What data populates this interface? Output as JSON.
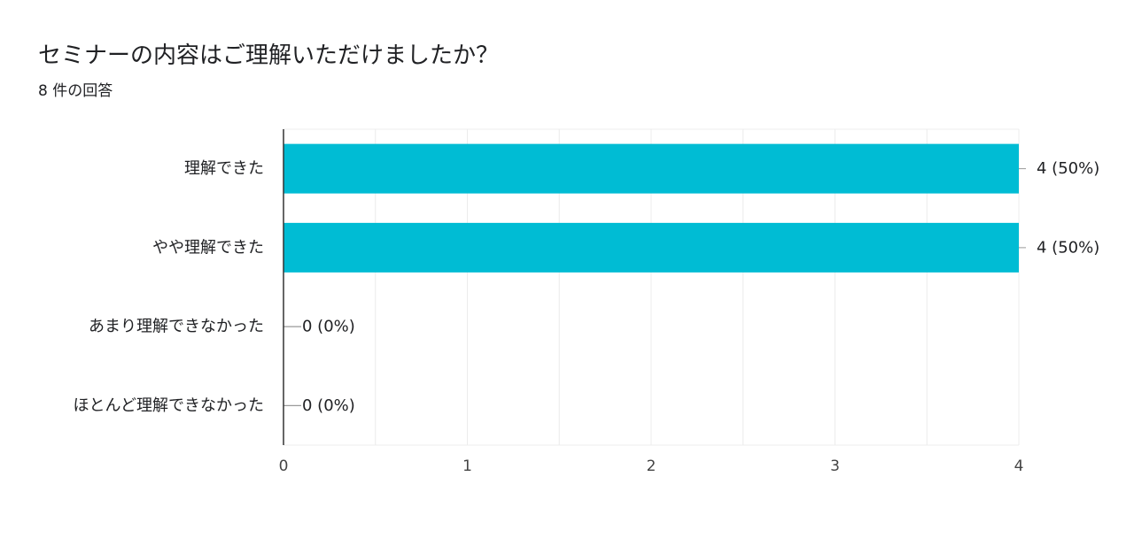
{
  "header": {
    "title": "セミナーの内容はご理解いただけましたか？",
    "subtitle": "8 件の回答"
  },
  "colors": {
    "bar": "#00BCD4",
    "grid": "#ececec",
    "axis": "#333333",
    "text": "#202124",
    "tick_text": "#444444"
  },
  "chart_data": {
    "type": "bar",
    "orientation": "horizontal",
    "title": "セミナーの内容はご理解いただけましたか？",
    "subtitle": "8 件の回答",
    "categories": [
      "理解できた",
      "やや理解できた",
      "あまり理解できなかった",
      "ほとんど理解できなかった"
    ],
    "values": [
      4,
      4,
      0,
      0
    ],
    "data_labels": [
      "4 (50%)",
      "4 (50%)",
      "0 (0%)",
      "0 (0%)"
    ],
    "xlim": [
      0,
      4
    ],
    "xticks": [
      "0",
      "1",
      "2",
      "3",
      "4"
    ],
    "grid": true,
    "legend": "none"
  }
}
